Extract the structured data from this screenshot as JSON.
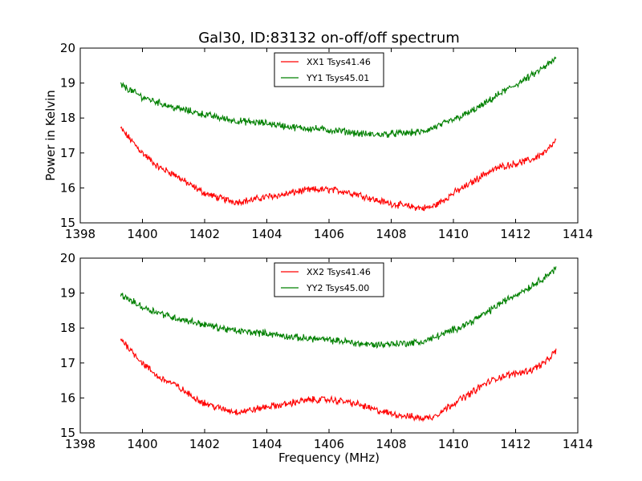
{
  "chart_data": [
    {
      "type": "line",
      "title": "Gal30, ID:83132 on-off/off spectrum",
      "xlabel": "",
      "ylabel": "Power in Kelvin",
      "xlim": [
        1398,
        1414
      ],
      "ylim": [
        15,
        20
      ],
      "xticks": [
        "1398",
        "1400",
        "1402",
        "1404",
        "1406",
        "1408",
        "1410",
        "1412",
        "1414"
      ],
      "yticks": [
        "15",
        "16",
        "17",
        "18",
        "19",
        "20"
      ],
      "legend_position": "top-center",
      "series": [
        {
          "name": "XX1 Tsys41.46",
          "color": "#ff0000",
          "x": [
            1399.3,
            1399.6,
            1400.0,
            1400.5,
            1401.0,
            1401.5,
            1402.0,
            1402.5,
            1403.0,
            1403.5,
            1404.0,
            1404.5,
            1405.0,
            1405.5,
            1406.0,
            1406.5,
            1407.0,
            1407.5,
            1408.0,
            1408.5,
            1409.0,
            1409.3,
            1409.6,
            1410.0,
            1410.5,
            1411.0,
            1411.5,
            1412.0,
            1412.5,
            1413.0,
            1413.3
          ],
          "values": [
            17.7,
            17.4,
            17.0,
            16.6,
            16.4,
            16.1,
            15.85,
            15.7,
            15.6,
            15.65,
            15.75,
            15.8,
            15.9,
            15.95,
            15.95,
            15.9,
            15.8,
            15.65,
            15.55,
            15.48,
            15.42,
            15.45,
            15.6,
            15.85,
            16.1,
            16.4,
            16.6,
            16.7,
            16.8,
            17.05,
            17.35
          ]
        },
        {
          "name": "YY1 Tsys45.01",
          "color": "#008000",
          "x": [
            1399.3,
            1399.6,
            1400.0,
            1400.5,
            1401.0,
            1401.5,
            1402.0,
            1402.5,
            1403.0,
            1403.5,
            1404.0,
            1404.5,
            1405.0,
            1405.5,
            1406.0,
            1406.5,
            1407.0,
            1407.5,
            1408.0,
            1408.5,
            1409.0,
            1409.3,
            1409.6,
            1410.0,
            1410.5,
            1411.0,
            1411.5,
            1412.0,
            1412.5,
            1413.0,
            1413.3
          ],
          "values": [
            18.95,
            18.8,
            18.6,
            18.45,
            18.3,
            18.2,
            18.1,
            18.0,
            17.92,
            17.88,
            17.85,
            17.78,
            17.72,
            17.7,
            17.65,
            17.62,
            17.55,
            17.52,
            17.55,
            17.57,
            17.6,
            17.7,
            17.8,
            17.95,
            18.15,
            18.4,
            18.7,
            18.95,
            19.2,
            19.5,
            19.7
          ]
        }
      ]
    },
    {
      "type": "line",
      "title": "",
      "xlabel": "Frequency (MHz)",
      "ylabel": "",
      "xlim": [
        1398,
        1414
      ],
      "ylim": [
        15,
        20
      ],
      "xticks": [
        "1398",
        "1400",
        "1402",
        "1404",
        "1406",
        "1408",
        "1410",
        "1412",
        "1414"
      ],
      "yticks": [
        "15",
        "16",
        "17",
        "18",
        "19",
        "20"
      ],
      "legend_position": "top-center",
      "series": [
        {
          "name": "XX2 Tsys41.46",
          "color": "#ff0000",
          "x": [
            1399.3,
            1399.6,
            1400.0,
            1400.5,
            1401.0,
            1401.5,
            1402.0,
            1402.5,
            1403.0,
            1403.5,
            1404.0,
            1404.5,
            1405.0,
            1405.5,
            1406.0,
            1406.5,
            1407.0,
            1407.5,
            1408.0,
            1408.5,
            1409.0,
            1409.3,
            1409.6,
            1410.0,
            1410.5,
            1411.0,
            1411.5,
            1412.0,
            1412.5,
            1413.0,
            1413.3
          ],
          "values": [
            17.7,
            17.4,
            17.0,
            16.6,
            16.4,
            16.1,
            15.85,
            15.7,
            15.6,
            15.65,
            15.75,
            15.8,
            15.9,
            15.95,
            15.95,
            15.9,
            15.8,
            15.65,
            15.55,
            15.48,
            15.42,
            15.45,
            15.6,
            15.85,
            16.1,
            16.4,
            16.6,
            16.7,
            16.8,
            17.05,
            17.35
          ]
        },
        {
          "name": "YY2 Tsys45.00",
          "color": "#008000",
          "x": [
            1399.3,
            1399.6,
            1400.0,
            1400.5,
            1401.0,
            1401.5,
            1402.0,
            1402.5,
            1403.0,
            1403.5,
            1404.0,
            1404.5,
            1405.0,
            1405.5,
            1406.0,
            1406.5,
            1407.0,
            1407.5,
            1408.0,
            1408.5,
            1409.0,
            1409.3,
            1409.6,
            1410.0,
            1410.5,
            1411.0,
            1411.5,
            1412.0,
            1412.5,
            1413.0,
            1413.3
          ],
          "values": [
            18.95,
            18.8,
            18.6,
            18.45,
            18.3,
            18.2,
            18.1,
            18.0,
            17.92,
            17.88,
            17.85,
            17.78,
            17.72,
            17.7,
            17.65,
            17.62,
            17.55,
            17.52,
            17.55,
            17.57,
            17.6,
            17.7,
            17.8,
            17.95,
            18.15,
            18.4,
            18.7,
            18.95,
            19.2,
            19.5,
            19.7
          ]
        }
      ]
    }
  ]
}
